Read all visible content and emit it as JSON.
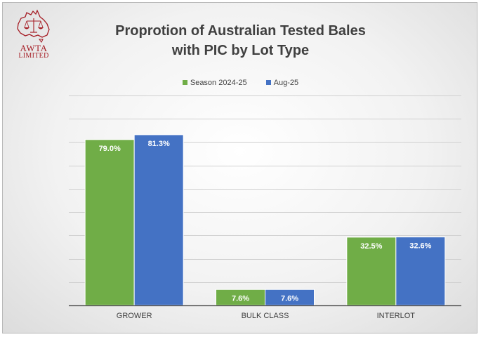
{
  "logo": {
    "line1": "AWTA",
    "line2": "LIMITED",
    "color": "#a51c24"
  },
  "chart_data": {
    "type": "bar",
    "title_line1": "Proprotion of Australian Tested Bales",
    "title_line2": "with PIC by Lot Type",
    "categories": [
      "GROWER",
      "BULK CLASS",
      "INTERLOT"
    ],
    "series": [
      {
        "name": "Season 2024-25",
        "values": [
          79.0,
          7.6,
          32.5
        ],
        "labels": [
          "79.0%",
          "7.6%",
          "32.5%"
        ],
        "color": "#70ad47"
      },
      {
        "name": "Aug-25",
        "values": [
          81.3,
          7.6,
          32.6
        ],
        "labels": [
          "81.3%",
          "7.6%",
          "32.6%"
        ],
        "color": "#4472c4"
      }
    ],
    "ylim": [
      0,
      100
    ],
    "gridlines": true,
    "legend_position": "top",
    "xlabel": "",
    "ylabel": ""
  }
}
